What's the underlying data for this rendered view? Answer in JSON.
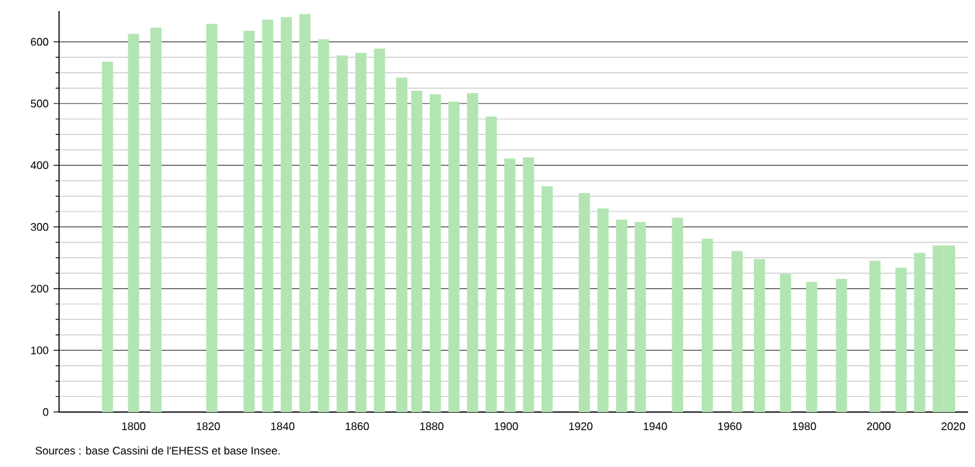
{
  "chart_data": {
    "type": "bar",
    "color": "#b3e5b3",
    "x": [
      1793,
      1800,
      1806,
      1821,
      1831,
      1836,
      1841,
      1846,
      1851,
      1856,
      1861,
      1866,
      1872,
      1876,
      1881,
      1886,
      1891,
      1896,
      1901,
      1906,
      1911,
      1921,
      1926,
      1931,
      1936,
      1946,
      1954,
      1962,
      1968,
      1975,
      1982,
      1990,
      1999,
      2006,
      2011,
      2016,
      2019
    ],
    "values": [
      568,
      613,
      623,
      629,
      618,
      636,
      640,
      645,
      604,
      578,
      582,
      589,
      542,
      521,
      515,
      503,
      517,
      479,
      411,
      413,
      366,
      355,
      330,
      312,
      308,
      315,
      281,
      261,
      248,
      224,
      211,
      216,
      245,
      234,
      258,
      270,
      270
    ],
    "xlim": [
      1780,
      2024
    ],
    "xticks": [
      1800,
      1820,
      1840,
      1860,
      1880,
      1900,
      1920,
      1940,
      1960,
      1980,
      2000,
      2020
    ],
    "ylim": [
      0,
      650
    ],
    "yticks": [
      0,
      100,
      200,
      300,
      400,
      500,
      600
    ],
    "grid": "y",
    "annotations": [
      "Sources : base Cassini de l'EHESS et base Insee."
    ]
  }
}
